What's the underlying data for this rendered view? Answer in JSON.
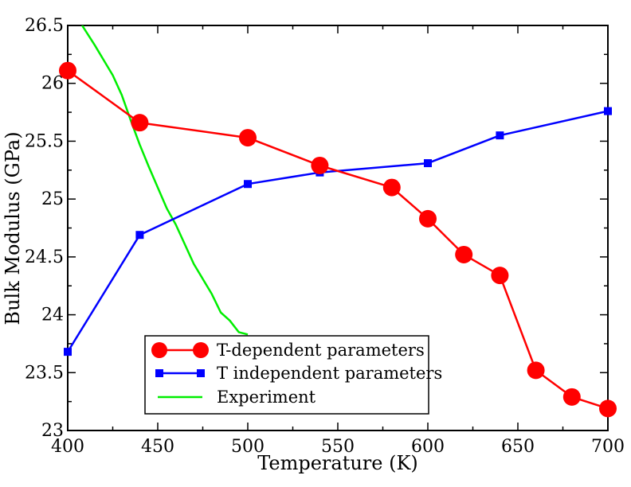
{
  "chart_data": {
    "type": "line",
    "title": "",
    "xlabel": "Temperature (K)",
    "ylabel": "Bulk Modulus (GPa)",
    "xlim": [
      400,
      700
    ],
    "ylim": [
      23,
      26.5
    ],
    "x_ticks": [
      400,
      450,
      500,
      550,
      600,
      650,
      700
    ],
    "x_tick_labels": [
      "400",
      "450",
      "500",
      "550",
      "600",
      "650",
      "700"
    ],
    "y_ticks": [
      23,
      23.5,
      24,
      24.5,
      25,
      25.5,
      26,
      26.5
    ],
    "y_tick_labels": [
      "23",
      "23.5",
      "24",
      "24.5",
      "25",
      "25.5",
      "26",
      "26.5"
    ],
    "grid": false,
    "legend_position": "bottom-center",
    "series": [
      {
        "name": "T-dependent parameters",
        "color": "#ff0000",
        "marker": "circle",
        "x": [
          400,
          440,
          500,
          540,
          580,
          600,
          620,
          640,
          660,
          680,
          700
        ],
        "y": [
          26.11,
          25.66,
          25.53,
          25.29,
          25.1,
          24.83,
          24.52,
          24.34,
          23.52,
          23.29,
          23.19
        ]
      },
      {
        "name": "T independent parameters",
        "color": "#0000ff",
        "marker": "square",
        "x": [
          400,
          440,
          500,
          540,
          600,
          640,
          700
        ],
        "y": [
          23.68,
          24.69,
          25.13,
          25.23,
          25.31,
          25.55,
          25.76
        ]
      },
      {
        "name": "Experiment",
        "color": "#00ee00",
        "marker": "none",
        "x": [
          408,
          415,
          420,
          425,
          430,
          435,
          440,
          445,
          450,
          455,
          460,
          465,
          470,
          475,
          480,
          485,
          490,
          495,
          500
        ],
        "y": [
          26.5,
          26.33,
          26.2,
          26.07,
          25.9,
          25.68,
          25.47,
          25.28,
          25.1,
          24.92,
          24.78,
          24.61,
          24.44,
          24.31,
          24.18,
          24.02,
          23.95,
          23.85,
          23.83
        ]
      }
    ]
  }
}
